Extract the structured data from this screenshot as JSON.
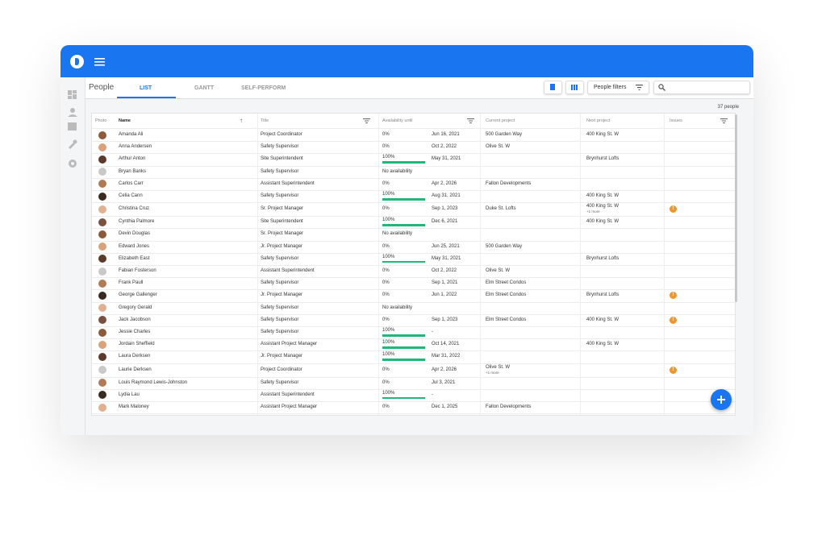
{
  "header": {
    "section": "People",
    "tabs": [
      "LIST",
      "GANTT",
      "SELF-PERFORM"
    ],
    "filter_button": "People filters"
  },
  "count": "37 people",
  "table": {
    "columns": [
      "Photo",
      "Name",
      "Title",
      "Availability until",
      "Current project",
      "Next project",
      "Issues"
    ],
    "rows": [
      {
        "name": "Amanda Ali",
        "title": "Project Coordinator",
        "availability": {
          "value": 0,
          "label": "0%"
        },
        "until": "Jun 16, 2021",
        "current": [
          "500 Garden Way"
        ],
        "next": [
          "400 King St. W"
        ]
      },
      {
        "name": "Anna Andersen",
        "title": "Safety Supervisor",
        "availability": {
          "value": 0,
          "label": "0%"
        },
        "until": "Oct 2, 2022",
        "current": [
          "Olive St. W"
        ]
      },
      {
        "name": "Arthur Anton",
        "title": "Site Superintendent",
        "availability": {
          "value": 100,
          "label": "100%"
        },
        "until": "May 31, 2021",
        "next": [
          "Brynhurst Lofts"
        ]
      },
      {
        "name": "Bryan Banks",
        "title": "Safety Supervisor",
        "availability": "No availability"
      },
      {
        "name": "Carlos Carr",
        "title": "Assistant Superintendent",
        "availability": {
          "value": 0,
          "label": "0%"
        },
        "until": "Apr 2, 2026",
        "current": [
          "Fallon Developments"
        ]
      },
      {
        "name": "Celia Cann",
        "title": "Safety Supervisor",
        "availability": {
          "value": 100,
          "label": "100%"
        },
        "until": "Aug 31, 2021",
        "next": [
          "400 King St. W"
        ]
      },
      {
        "name": "Christina Cruz",
        "title": "Sr. Project Manager",
        "availability": {
          "value": 0,
          "label": "0%"
        },
        "until": "Sep 1, 2023",
        "current": [
          "Duke St. Lofts"
        ],
        "next": [
          "400 King St. W",
          "+1 more"
        ],
        "issue": "!"
      },
      {
        "name": "Cynthia Palmore",
        "title": "Site Superintendent",
        "availability": {
          "value": 100,
          "label": "100%"
        },
        "until": "Dec 6, 2021",
        "next": [
          "400 King St. W"
        ]
      },
      {
        "name": "Devin Douglas",
        "title": "Sr. Project Manager",
        "availability": "No availability"
      },
      {
        "name": "Edward Jones",
        "title": "Jr. Project Manager",
        "availability": {
          "value": 0,
          "label": "0%"
        },
        "until": "Jun 25, 2021",
        "current": [
          "500 Garden Way"
        ]
      },
      {
        "name": "Elizabeth East",
        "title": "Safety Supervisor",
        "availability": {
          "value": 100,
          "label": "100%"
        },
        "until": "May 31, 2021",
        "next": [
          "Brynhurst Lofts"
        ]
      },
      {
        "name": "Fabian Fosterson",
        "title": "Assistant Superintendent",
        "availability": {
          "value": 0,
          "label": "0%"
        },
        "until": "Oct 2, 2022",
        "current": [
          "Olive St. W"
        ]
      },
      {
        "name": "Frank Paull",
        "title": "Safety Supervisor",
        "availability": {
          "value": 0,
          "label": "0%"
        },
        "until": "Sep 1, 2021",
        "current": [
          "Elm Street Condos"
        ]
      },
      {
        "name": "George Gallenger",
        "title": "Jr. Project Manager",
        "availability": {
          "value": 0,
          "label": "0%"
        },
        "until": "Jun 1, 2022",
        "current": [
          "Elm Street Condos"
        ],
        "next": [
          "Brynhurst Lofts"
        ],
        "issue": "!"
      },
      {
        "name": "Gregory Gerald",
        "title": "Safety Supervisor",
        "availability": "No availability"
      },
      {
        "name": "Jack Jacobson",
        "title": "Safety Supervisor",
        "availability": {
          "value": 0,
          "label": "0%"
        },
        "until": "Sep 1, 2023",
        "current": [
          "Elm Street Condos"
        ],
        "next": [
          "400 King St. W"
        ],
        "issue": "!"
      },
      {
        "name": "Jessie Charles",
        "title": "Safety Supervisor",
        "availability": {
          "value": 100,
          "label": "100%"
        },
        "until": "-"
      },
      {
        "name": "Jordain Sheffield",
        "title": "Assistant Project Manager",
        "availability": {
          "value": 100,
          "label": "100%"
        },
        "until": "Oct 14, 2021",
        "next": [
          "400 King St. W"
        ]
      },
      {
        "name": "Laura Derksen",
        "title": "Jr. Project Manager",
        "availability": {
          "value": 100,
          "label": "100%"
        },
        "until": "Mar 31, 2022"
      },
      {
        "name": "Laurie Derksen",
        "title": "Project Coordinator",
        "availability": {
          "value": 0,
          "label": "0%"
        },
        "until": "Apr 2, 2026",
        "current": [
          "Olive St. W",
          "+1 more"
        ],
        "issue": "!"
      },
      {
        "name": "Louis Raymond Lewis-Johnston",
        "title": "Safety Supervisor",
        "availability": {
          "value": 0,
          "label": "0%"
        },
        "until": "Jul 3, 2021"
      },
      {
        "name": "Lydia Lau",
        "title": "Assistant Superintendent",
        "availability": {
          "value": 100,
          "label": "100%"
        },
        "until": "-"
      },
      {
        "name": "Mark Maloney",
        "title": "Assistant Project Manager",
        "availability": {
          "value": 0,
          "label": "0%"
        },
        "until": "Dec 1, 2025",
        "current": [
          "Fallon Developments"
        ]
      }
    ]
  }
}
